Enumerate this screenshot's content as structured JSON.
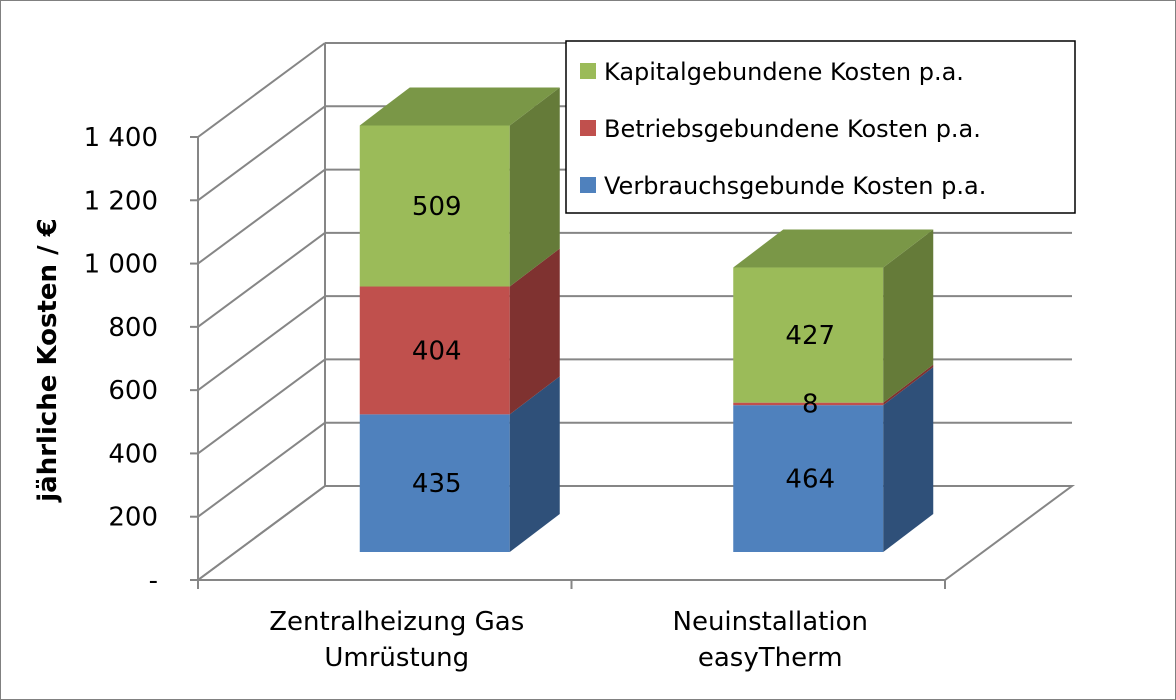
{
  "chart_data": {
    "type": "bar",
    "stacked": true,
    "three_d": true,
    "ylabel": "jährliche Kosten / €",
    "ylim": [
      0,
      1400
    ],
    "yticks": [
      0,
      200,
      400,
      600,
      800,
      1000,
      1200,
      1400
    ],
    "ytick_labels": [
      "-",
      "200",
      "400",
      "600",
      "800",
      "1 000",
      "1 200",
      "1 400"
    ],
    "categories": [
      [
        "Zentralheizung Gas",
        "Umrüstung"
      ],
      [
        "Neuinstallation",
        "easyTherm"
      ]
    ],
    "series": [
      {
        "name": "Verbrauchsgebunde Kosten p.a.",
        "values": [
          435,
          464
        ],
        "color": "#4f81bd",
        "side": "#2f5079",
        "top": "#3e6597"
      },
      {
        "name": "Betriebsgebundene Kosten p.a.",
        "values": [
          404,
          8
        ],
        "color": "#c0504d",
        "side": "#7f3230",
        "top": "#99403d"
      },
      {
        "name": "Kapitalgebundene Kosten p.a.",
        "values": [
          509,
          427
        ],
        "color": "#9bbb59",
        "side": "#657b39",
        "top": "#7a9747"
      }
    ],
    "grid": true,
    "legend": "top-right"
  }
}
